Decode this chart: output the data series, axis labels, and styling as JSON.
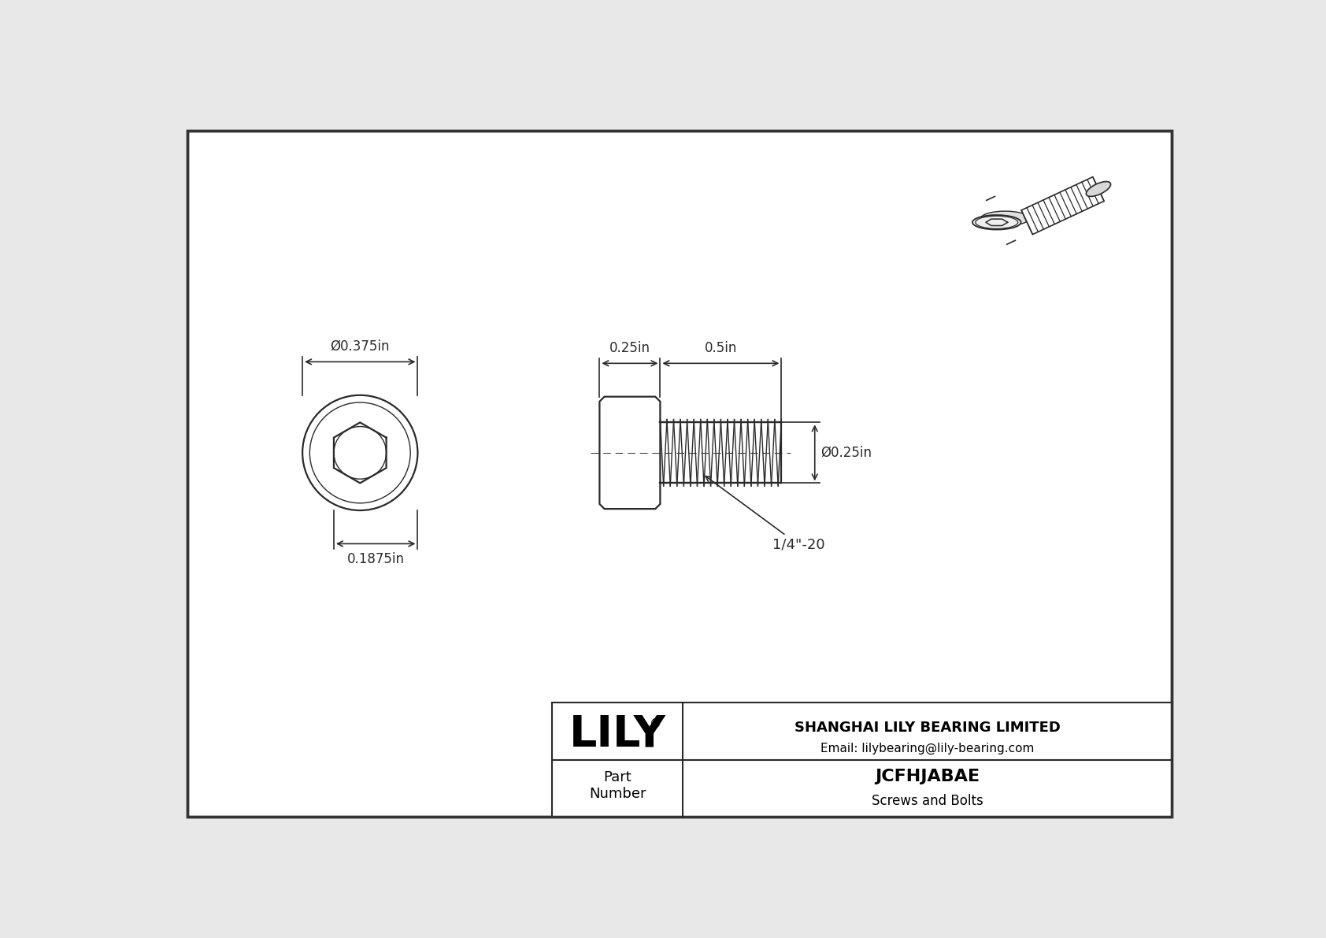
{
  "bg_color": "#e8e8e8",
  "drawing_bg": "#ffffff",
  "line_color": "#2a2a2a",
  "dim_color": "#2a2a2a",
  "title": "JCFHJABAE",
  "subtitle": "Screws and Bolts",
  "company": "SHANGHAI LILY BEARING LIMITED",
  "email": "Email: lilybearing@lily-bearing.com",
  "part_label": "Part\nNumber",
  "dim_head_diameter": "Ø0.375in",
  "dim_socket_depth": "0.1875in",
  "dim_head_length": "0.25in",
  "dim_shank_length": "0.5in",
  "dim_shank_diameter": "Ø0.25in",
  "dim_thread": "1/4\"-20",
  "border_color": "#555555",
  "lily_logo": "LILY",
  "reg_mark": "®"
}
